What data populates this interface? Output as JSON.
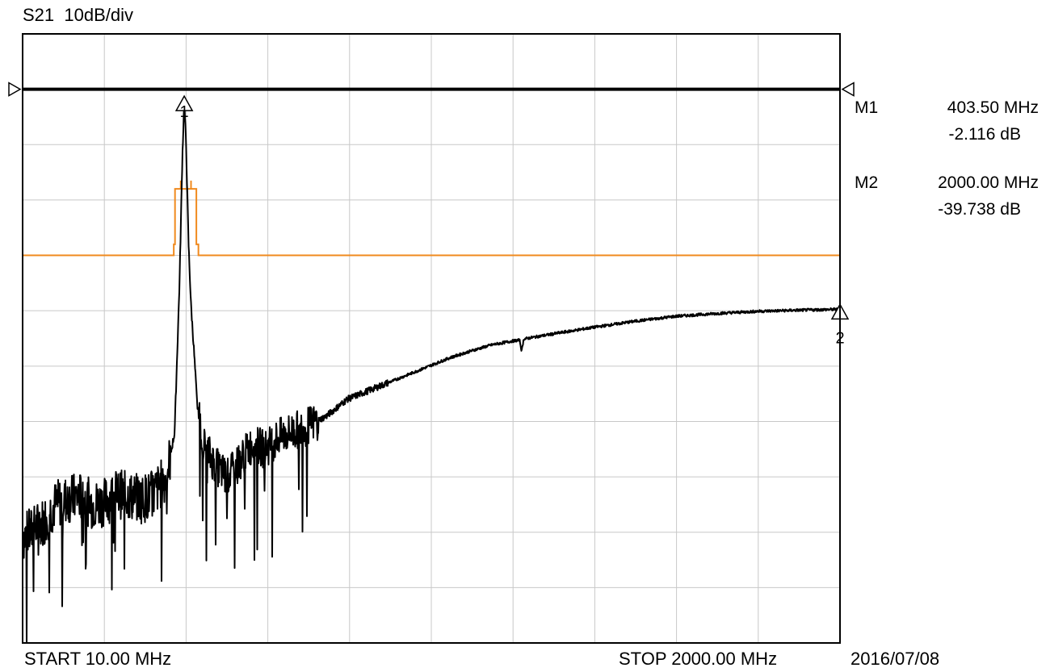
{
  "header": {
    "trace_label": "S21",
    "scale_label": "10dB/div"
  },
  "footer": {
    "start_label": "START 10.00 MHz",
    "stop_label": "STOP 2000.00 MHz",
    "date": "2016/07/08"
  },
  "markers": [
    {
      "name": "M1",
      "freq": "403.50 MHz",
      "level": "-2.116 dB",
      "tag": "1"
    },
    {
      "name": "M2",
      "freq": "2000.00 MHz",
      "level": "-39.738 dB",
      "tag": "2"
    }
  ],
  "colors": {
    "trace": "#000000",
    "grid": "#c8c8c8",
    "limit": "#f08a1e",
    "frame": "#000000"
  },
  "chart_data": {
    "type": "line",
    "title": "S21 10dB/div",
    "xlabel": "",
    "ylabel": "",
    "x_unit": "MHz",
    "y_unit": "dB",
    "xlim": [
      10,
      2000
    ],
    "ylim": [
      -100,
      10
    ],
    "grid": true,
    "reference_level_db": 0,
    "marker_points": [
      {
        "name": "M1",
        "x": 403.5,
        "y": -2.116
      },
      {
        "name": "M2",
        "x": 2000.0,
        "y": -39.738
      }
    ],
    "limit_line": {
      "points": [
        [
          10,
          -30
        ],
        [
          378,
          -30
        ],
        [
          378,
          -28
        ],
        [
          381,
          -28
        ],
        [
          381,
          -18
        ],
        [
          395,
          -18
        ],
        [
          395,
          -16.5
        ],
        [
          395,
          -18
        ],
        [
          420,
          -18
        ],
        [
          420,
          -16.5
        ],
        [
          420,
          -18
        ],
        [
          433,
          -18
        ],
        [
          433,
          -28
        ],
        [
          438,
          -28
        ],
        [
          438,
          -30
        ],
        [
          2000,
          -30
        ]
      ]
    },
    "series": [
      {
        "values": [
          [
            10,
            -81
          ],
          [
            30,
            -80
          ],
          [
            60,
            -78
          ],
          [
            90,
            -75
          ],
          [
            120,
            -74
          ],
          [
            150,
            -73.5
          ],
          [
            180,
            -75
          ],
          [
            210,
            -74.5
          ],
          [
            240,
            -73
          ],
          [
            270,
            -73.5
          ],
          [
            300,
            -74
          ],
          [
            330,
            -73
          ],
          [
            360,
            -70
          ],
          [
            380,
            -62
          ],
          [
            392,
            -35
          ],
          [
            399,
            -12
          ],
          [
            403.5,
            -2.1
          ],
          [
            408,
            -10
          ],
          [
            414,
            -28
          ],
          [
            420,
            -39
          ],
          [
            427,
            -47
          ],
          [
            435,
            -57
          ],
          [
            450,
            -64
          ],
          [
            480,
            -68
          ],
          [
            510,
            -70
          ],
          [
            540,
            -67
          ],
          [
            570,
            -64
          ],
          [
            600,
            -65
          ],
          [
            630,
            -63
          ],
          [
            660,
            -62
          ],
          [
            700,
            -61
          ],
          [
            750,
            -59
          ],
          [
            800,
            -56
          ],
          [
            850,
            -54.5
          ],
          [
            900,
            -53
          ],
          [
            950,
            -51.5
          ],
          [
            1000,
            -50
          ],
          [
            1050,
            -48.5
          ],
          [
            1100,
            -47.3
          ],
          [
            1150,
            -46.2
          ],
          [
            1200,
            -45.5
          ],
          [
            1220,
            -45.3
          ],
          [
            1225,
            -47.3
          ],
          [
            1230,
            -45.1
          ],
          [
            1300,
            -44.2
          ],
          [
            1400,
            -43
          ],
          [
            1500,
            -41.9
          ],
          [
            1600,
            -41
          ],
          [
            1700,
            -40.5
          ],
          [
            1800,
            -40.1
          ],
          [
            1900,
            -39.9
          ],
          [
            2000,
            -39.738
          ]
        ]
      }
    ]
  }
}
